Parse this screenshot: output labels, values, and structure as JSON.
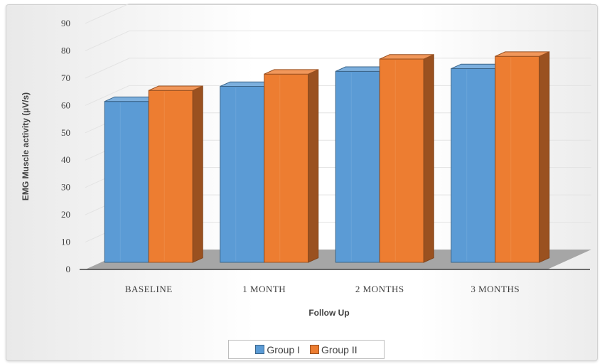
{
  "chart_data": {
    "type": "bar",
    "style": "3d-clustered-column",
    "title": "",
    "xlabel": "Follow Up",
    "ylabel": "EMG Muscle activity (µV/s)",
    "ylim": [
      0,
      90
    ],
    "yticks": [
      0,
      10,
      20,
      30,
      40,
      50,
      60,
      70,
      80,
      90
    ],
    "ytick_labels": [
      "0",
      "10",
      "20",
      "30",
      "40",
      "50",
      "60",
      "70",
      "80",
      "90"
    ],
    "categories": [
      "BASELINE",
      "1 MONTH",
      "2 MONTHS",
      "3 MONTHS"
    ],
    "series": [
      {
        "name": "Group I",
        "values": [
          62,
          67.5,
          73,
          74
        ],
        "color": "#5b9bd5"
      },
      {
        "name": "Group II",
        "values": [
          66,
          72,
          77.5,
          78.5
        ],
        "color": "#ed7d31"
      }
    ],
    "legend_position": "bottom",
    "grid": true
  }
}
